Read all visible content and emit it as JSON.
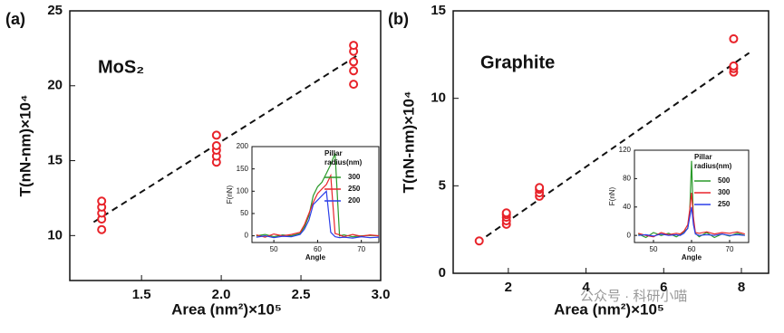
{
  "chart_data": [
    {
      "type": "scatter",
      "panel_label": "(a)",
      "annotation": "MoS₂",
      "x_label": "Area (nm²)×10⁵",
      "y_label": "T(nN-nm)×10⁴",
      "xlim": [
        1.05,
        3.0
      ],
      "xticks": [
        1.5,
        {
          "value": 2,
          "label": "2.0"
        },
        2.5,
        {
          "value": 3,
          "label": "3.0"
        }
      ],
      "ylim": [
        7,
        25
      ],
      "yticks": [
        10,
        15,
        20,
        25
      ],
      "series": [
        {
          "color": "#e8232a",
          "x": [
            1.25,
            1.25,
            1.25,
            1.25,
            1.25,
            1.97,
            1.97,
            1.97,
            1.97,
            1.97,
            2.83,
            2.83,
            2.83,
            2.83,
            2.83
          ],
          "values": [
            10.4,
            11.1,
            11.5,
            11.9,
            12.3,
            14.9,
            15.3,
            15.7,
            16.0,
            16.7,
            20.1,
            21.0,
            21.6,
            22.3,
            22.7
          ]
        }
      ],
      "fit": {
        "x": [
          1.2,
          2.85
        ],
        "values": [
          10.9,
          22.0
        ]
      },
      "inset": {
        "type": "line",
        "x_label": "Angle",
        "y_label": "F(nN)",
        "legend_title": [
          "Pillar",
          "radius(nm)"
        ],
        "xlim": [
          45,
          74
        ],
        "xticks": [
          50,
          60,
          70
        ],
        "ylim": [
          -15,
          200
        ],
        "yticks": [
          0,
          50,
          100,
          150,
          200
        ],
        "x": [
          46,
          48,
          50,
          52,
          54,
          56,
          57,
          58,
          59,
          60,
          61,
          62,
          63,
          64,
          65,
          66,
          68,
          70,
          72,
          74
        ],
        "series": [
          {
            "name": "300",
            "color": "#2a9a2a",
            "values": [
              0,
              3,
              -2,
              2,
              0,
              5,
              20,
              45,
              90,
              110,
              120,
              140,
              160,
              185,
              0,
              2,
              -2,
              0,
              1,
              0
            ]
          },
          {
            "name": "250",
            "color": "#e8232a",
            "values": [
              2,
              -3,
              4,
              0,
              3,
              8,
              25,
              50,
              75,
              95,
              105,
              115,
              135,
              5,
              2,
              -2,
              3,
              -1,
              2,
              0
            ]
          },
          {
            "name": "200",
            "color": "#2b3ee8",
            "values": [
              -3,
              0,
              -4,
              -1,
              -2,
              3,
              15,
              35,
              70,
              80,
              90,
              100,
              8,
              -2,
              -4,
              -3,
              -5,
              -2,
              -4,
              -3
            ]
          }
        ]
      }
    },
    {
      "type": "scatter",
      "panel_label": "(b)",
      "annotation": "Graphite",
      "x_label": "Area (nm²)×10⁵",
      "y_label": "T(nN-nm)×10⁴",
      "xlim": [
        0.58,
        8.7
      ],
      "xticks": [
        2,
        4,
        6,
        8
      ],
      "ylim": [
        0,
        15
      ],
      "yticks": [
        0,
        5,
        10,
        15
      ],
      "series": [
        {
          "color": "#e8232a",
          "x": [
            1.25,
            1.95,
            1.95,
            1.95,
            1.95,
            1.95,
            2.8,
            2.8,
            2.8,
            2.8,
            7.8,
            7.8,
            7.8,
            7.8
          ],
          "values": [
            1.85,
            2.8,
            3.0,
            3.2,
            3.35,
            3.45,
            4.4,
            4.6,
            4.8,
            4.9,
            11.5,
            11.7,
            11.85,
            13.4
          ]
        }
      ],
      "fit": {
        "x": [
          1.2,
          8.2
        ],
        "values": [
          1.75,
          12.6
        ]
      },
      "inset": {
        "type": "line",
        "x_label": "Angle",
        "y_label": "F(nN)",
        "legend_title": [
          "Pillar",
          "radius(nm)"
        ],
        "xlim": [
          45,
          75
        ],
        "xticks": [
          50,
          60,
          70
        ],
        "ylim": [
          -10,
          120
        ],
        "yticks": [
          0,
          40,
          80,
          120
        ],
        "x": [
          46,
          48,
          50,
          52,
          54,
          56,
          57,
          58,
          59,
          59.5,
          60,
          60.5,
          61,
          62,
          64,
          66,
          68,
          70,
          72,
          74
        ],
        "series": [
          {
            "name": "500",
            "color": "#2a9a2a",
            "values": [
              2,
              -3,
              4,
              0,
              3,
              -2,
              1,
              5,
              10,
              30,
              105,
              20,
              3,
              -2,
              4,
              -3,
              2,
              -1,
              3,
              0
            ]
          },
          {
            "name": "300",
            "color": "#e8232a",
            "values": [
              3,
              0,
              -2,
              4,
              1,
              3,
              2,
              6,
              15,
              35,
              60,
              25,
              4,
              3,
              5,
              2,
              4,
              3,
              5,
              2
            ]
          },
          {
            "name": "250",
            "color": "#2b3ee8",
            "values": [
              0,
              1,
              -1,
              2,
              0,
              1,
              0,
              3,
              10,
              25,
              40,
              15,
              2,
              0,
              1,
              0,
              2,
              0,
              1,
              0
            ]
          }
        ]
      }
    }
  ],
  "watermark": "公众号 · 科研小喵"
}
